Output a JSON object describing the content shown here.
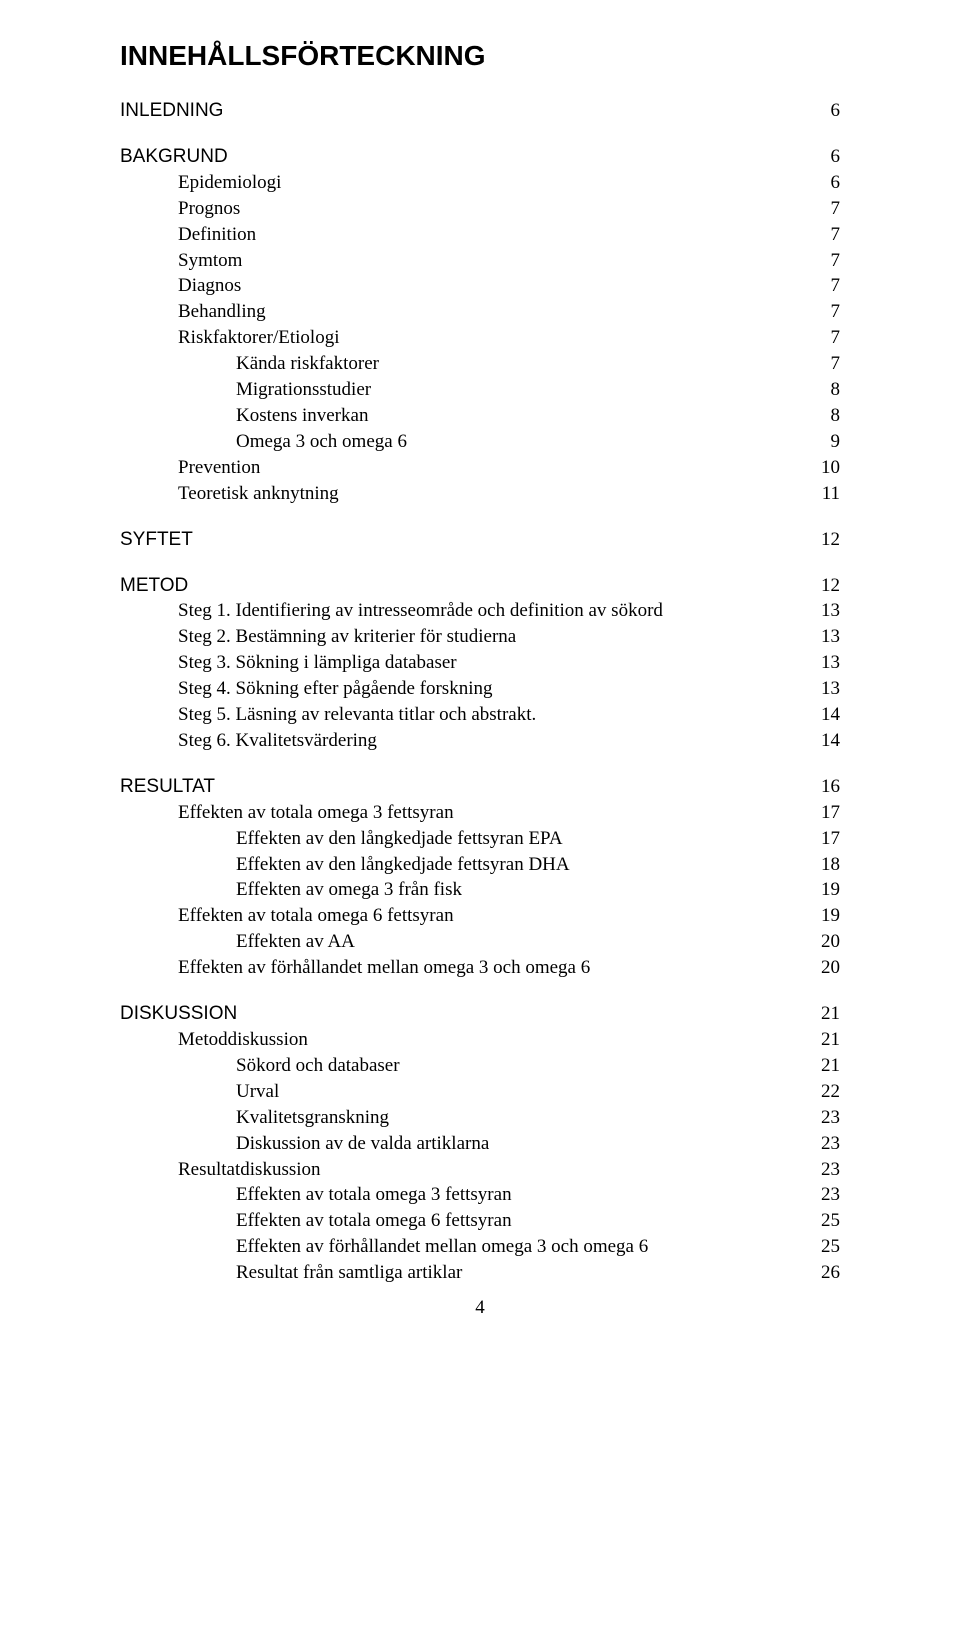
{
  "title": "INNEHÅLLSFÖRTECKNING",
  "pageNumber": "4",
  "toc": [
    {
      "label": "INLEDNING",
      "page": "6",
      "level": "l0-arial",
      "spaceBefore": false
    },
    {
      "label": "BAKGRUND",
      "page": "6",
      "level": "l0-arial",
      "spaceBefore": true
    },
    {
      "label": "Epidemiologi",
      "page": "6",
      "level": "l1"
    },
    {
      "label": "Prognos",
      "page": "7",
      "level": "l1"
    },
    {
      "label": "Definition",
      "page": "7",
      "level": "l1"
    },
    {
      "label": "Symtom",
      "page": "7",
      "level": "l1"
    },
    {
      "label": "Diagnos",
      "page": "7",
      "level": "l1"
    },
    {
      "label": "Behandling",
      "page": "7",
      "level": "l1"
    },
    {
      "label": "Riskfaktorer/Etiologi",
      "page": "7",
      "level": "l1"
    },
    {
      "label": "Kända riskfaktorer",
      "page": "7",
      "level": "l2"
    },
    {
      "label": "Migrationsstudier",
      "page": "8",
      "level": "l2"
    },
    {
      "label": "Kostens inverkan",
      "page": "8",
      "level": "l2"
    },
    {
      "label": "Omega 3 och omega 6",
      "page": "9",
      "level": "l2"
    },
    {
      "label": "Prevention",
      "page": "10",
      "level": "l1"
    },
    {
      "label": "Teoretisk anknytning",
      "page": "11",
      "level": "l1"
    },
    {
      "label": "SYFTET",
      "page": "12",
      "level": "l0-arial",
      "spaceBefore": true
    },
    {
      "label": "METOD",
      "page": "12",
      "level": "l0-arial",
      "spaceBefore": true
    },
    {
      "label": "Steg 1. Identifiering av intresseområde och definition av sökord",
      "page": "13",
      "level": "l1"
    },
    {
      "label": "Steg 2. Bestämning av kriterier för studierna",
      "page": "13",
      "level": "l1"
    },
    {
      "label": "Steg 3. Sökning i lämpliga databaser",
      "page": "13",
      "level": "l1"
    },
    {
      "label": "Steg 4. Sökning efter pågående forskning",
      "page": "13",
      "level": "l1"
    },
    {
      "label": "Steg 5. Läsning av relevanta titlar och abstrakt.",
      "page": "14",
      "level": "l1"
    },
    {
      "label": "Steg 6. Kvalitetsvärdering",
      "page": "14",
      "level": "l1"
    },
    {
      "label": "RESULTAT",
      "page": "16",
      "level": "l0-arial",
      "spaceBefore": true
    },
    {
      "label": "Effekten av totala omega 3 fettsyran",
      "page": "17",
      "level": "l1"
    },
    {
      "label": "Effekten av den långkedjade fettsyran EPA",
      "page": "17",
      "level": "l2"
    },
    {
      "label": "Effekten av den långkedjade fettsyran DHA",
      "page": "18",
      "level": "l2"
    },
    {
      "label": "Effekten av omega 3 från fisk",
      "page": "19",
      "level": "l2"
    },
    {
      "label": "Effekten av totala omega 6 fettsyran",
      "page": "19",
      "level": "l1"
    },
    {
      "label": "Effekten av AA",
      "page": "20",
      "level": "l2"
    },
    {
      "label": "Effekten av förhållandet mellan omega 3 och omega 6",
      "page": "20",
      "level": "l1"
    },
    {
      "label": "DISKUSSION",
      "page": "21",
      "level": "l0-arial",
      "spaceBefore": true
    },
    {
      "label": "Metoddiskussion",
      "page": "21",
      "level": "l1"
    },
    {
      "label": "Sökord och databaser",
      "page": "21",
      "level": "l2"
    },
    {
      "label": "Urval",
      "page": "22",
      "level": "l2"
    },
    {
      "label": "Kvalitetsgranskning",
      "page": "23",
      "level": "l2"
    },
    {
      "label": "Diskussion av de valda artiklarna",
      "page": "23",
      "level": "l2"
    },
    {
      "label": "Resultatdiskussion",
      "page": "23",
      "level": "l1"
    },
    {
      "label": "Effekten av totala omega 3 fettsyran",
      "page": "23",
      "level": "l2"
    },
    {
      "label": "Effekten av totala omega 6 fettsyran",
      "page": "25",
      "level": "l2"
    },
    {
      "label": "Effekten av förhållandet mellan omega 3 och omega 6",
      "page": "25",
      "level": "l2"
    },
    {
      "label": "Resultat från samtliga artiklar",
      "page": "26",
      "level": "l2"
    }
  ]
}
